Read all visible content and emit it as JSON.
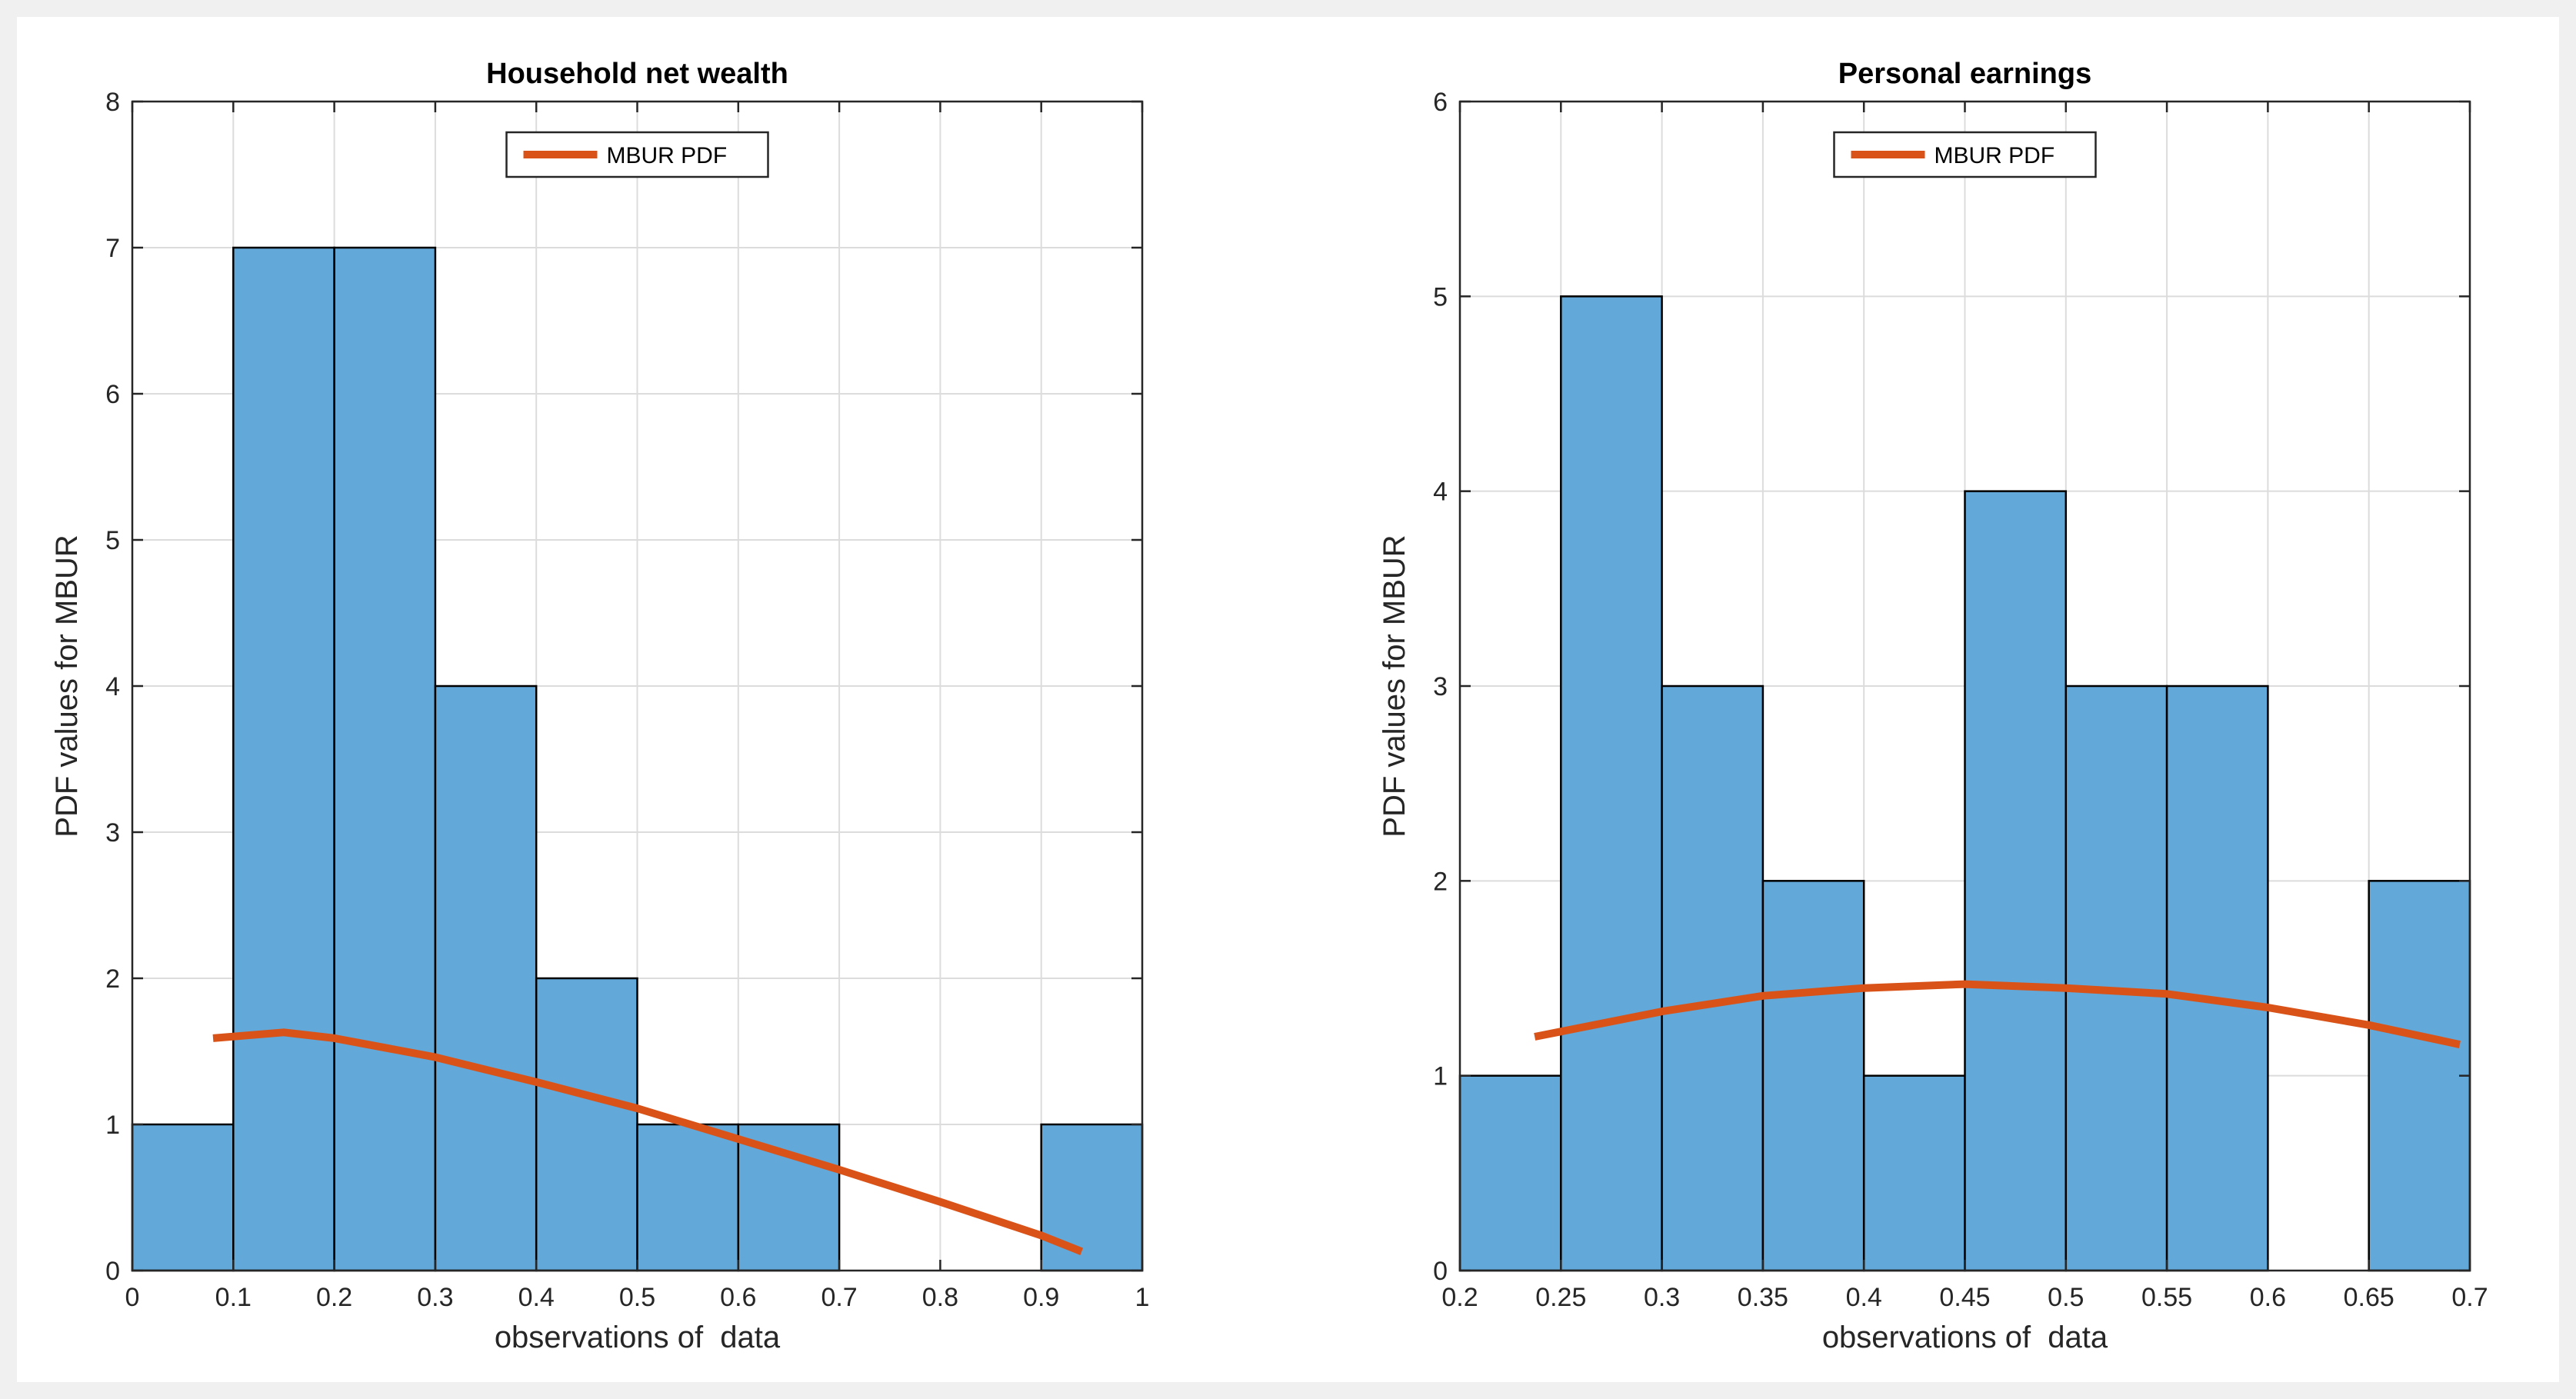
{
  "colors": {
    "bar_fill": "#62a8d8",
    "bar_edge": "#000000",
    "curve": "#d95319",
    "grid": "#dcdcdc",
    "axis": "#262626",
    "figure_bg": "#f0f0f0"
  },
  "chart_data": [
    {
      "type": "bar",
      "title": "Household net wealth",
      "xlabel": "observations of  data",
      "ylabel": "PDF values for MBUR",
      "xlim": [
        0,
        1
      ],
      "ylim": [
        0,
        8
      ],
      "xticks": [
        0,
        0.1,
        0.2,
        0.3,
        0.4,
        0.5,
        0.6,
        0.7,
        0.8,
        0.9,
        1
      ],
      "xtick_labels": [
        "0",
        "0.1",
        "0.2",
        "0.3",
        "0.4",
        "0.5",
        "0.6",
        "0.7",
        "0.8",
        "0.9",
        "1"
      ],
      "yticks": [
        0,
        1,
        2,
        3,
        4,
        5,
        6,
        7,
        8
      ],
      "ytick_labels": [
        "0",
        "1",
        "2",
        "3",
        "4",
        "5",
        "6",
        "7",
        "8"
      ],
      "grid": true,
      "legend": {
        "label": "MBUR PDF",
        "placement": "top-center"
      },
      "bins": [
        {
          "x0": 0.0,
          "x1": 0.1,
          "value": 1
        },
        {
          "x0": 0.1,
          "x1": 0.2,
          "value": 7
        },
        {
          "x0": 0.2,
          "x1": 0.3,
          "value": 7
        },
        {
          "x0": 0.3,
          "x1": 0.4,
          "value": 4
        },
        {
          "x0": 0.4,
          "x1": 0.5,
          "value": 2
        },
        {
          "x0": 0.5,
          "x1": 0.6,
          "value": 1
        },
        {
          "x0": 0.6,
          "x1": 0.7,
          "value": 1
        },
        {
          "x0": 0.7,
          "x1": 0.8,
          "value": 0
        },
        {
          "x0": 0.8,
          "x1": 0.9,
          "value": 0
        },
        {
          "x0": 0.9,
          "x1": 1.0,
          "value": 1
        }
      ],
      "series": [
        {
          "name": "MBUR PDF",
          "x": [
            0.08,
            0.15,
            0.2,
            0.3,
            0.4,
            0.5,
            0.6,
            0.7,
            0.8,
            0.9,
            0.94
          ],
          "y": [
            1.59,
            1.63,
            1.59,
            1.46,
            1.29,
            1.11,
            0.9,
            0.69,
            0.47,
            0.24,
            0.13
          ]
        }
      ]
    },
    {
      "type": "bar",
      "title": "Personal earnings",
      "xlabel": "observations of  data",
      "ylabel": "PDF values for MBUR",
      "xlim": [
        0.2,
        0.7
      ],
      "ylim": [
        0,
        6
      ],
      "xticks": [
        0.2,
        0.25,
        0.3,
        0.35,
        0.4,
        0.45,
        0.5,
        0.55,
        0.6,
        0.65,
        0.7
      ],
      "xtick_labels": [
        "0.2",
        "0.25",
        "0.3",
        "0.35",
        "0.4",
        "0.45",
        "0.5",
        "0.55",
        "0.6",
        "0.65",
        "0.7"
      ],
      "yticks": [
        0,
        1,
        2,
        3,
        4,
        5,
        6
      ],
      "ytick_labels": [
        "0",
        "1",
        "2",
        "3",
        "4",
        "5",
        "6"
      ],
      "grid": true,
      "legend": {
        "label": "MBUR PDF",
        "placement": "top-center"
      },
      "bins": [
        {
          "x0": 0.2,
          "x1": 0.25,
          "value": 1
        },
        {
          "x0": 0.25,
          "x1": 0.3,
          "value": 5
        },
        {
          "x0": 0.3,
          "x1": 0.35,
          "value": 3
        },
        {
          "x0": 0.35,
          "x1": 0.4,
          "value": 2
        },
        {
          "x0": 0.4,
          "x1": 0.45,
          "value": 1
        },
        {
          "x0": 0.45,
          "x1": 0.5,
          "value": 4
        },
        {
          "x0": 0.5,
          "x1": 0.55,
          "value": 3
        },
        {
          "x0": 0.55,
          "x1": 0.6,
          "value": 3
        },
        {
          "x0": 0.6,
          "x1": 0.65,
          "value": 0
        },
        {
          "x0": 0.65,
          "x1": 0.7,
          "value": 2
        }
      ],
      "series": [
        {
          "name": "MBUR PDF",
          "x": [
            0.237,
            0.3,
            0.35,
            0.4,
            0.45,
            0.5,
            0.55,
            0.6,
            0.65,
            0.695
          ],
          "y": [
            1.2,
            1.33,
            1.41,
            1.45,
            1.47,
            1.45,
            1.42,
            1.35,
            1.26,
            1.16
          ]
        }
      ]
    }
  ]
}
